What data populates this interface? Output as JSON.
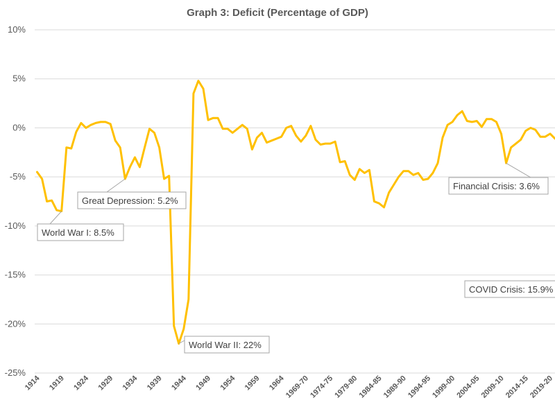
{
  "chart_data": {
    "type": "line",
    "title": "Graph 3: Deficit (Percentage of GDP)",
    "xlabel": "",
    "ylabel": "",
    "ylim": [
      -25,
      10
    ],
    "yticks": [
      10,
      5,
      0,
      -5,
      -10,
      -15,
      -20,
      -25
    ],
    "ytick_labels": [
      "10%",
      "5%",
      "0%",
      "-5%",
      "-10%",
      "-15%",
      "-20%",
      "-25%"
    ],
    "xtick_labels": [
      "1914",
      "1919",
      "1924",
      "1929",
      "1934",
      "1939",
      "1944",
      "1949",
      "1954",
      "1959",
      "1964",
      "1969-70",
      "1974-75",
      "1979-80",
      "1984-85",
      "1989-90",
      "1994-95",
      "1999-00",
      "2004-05",
      "2009-10",
      "2014-15",
      "2019-20"
    ],
    "grid": true,
    "legend": "none",
    "line_color": "#FFC000",
    "series": [
      {
        "values": [
          -4.5,
          -5.2,
          -7.5,
          -7.4,
          -8.4,
          -8.5,
          -2.0,
          -2.1,
          -0.4,
          0.5,
          0.0,
          0.3,
          0.5,
          0.6,
          0.6,
          0.4,
          -1.3,
          -2.0,
          -5.2,
          -4.0,
          -3.0,
          -4.0,
          -2.0,
          -0.1,
          -0.5,
          -2.0,
          -5.2,
          -4.9,
          -20.2,
          -22.0,
          -20.5,
          -17.5,
          3.5,
          4.8,
          4.0,
          0.8,
          1.0,
          1.0,
          -0.1,
          -0.1,
          -0.5,
          -0.1,
          0.3,
          -0.1,
          -2.2,
          -1.0,
          -0.5,
          -1.5,
          -1.3,
          -1.1,
          -0.9,
          0.0,
          0.2,
          -0.8,
          -1.4,
          -0.8,
          0.2,
          -1.2,
          -1.7,
          -1.6,
          -1.6,
          -1.4,
          -3.5,
          -3.4,
          -4.8,
          -5.3,
          -4.2,
          -4.6,
          -4.3,
          -7.5,
          -7.7,
          -8.1,
          -6.6,
          -5.8,
          -5.0,
          -4.4,
          -4.4,
          -4.8,
          -4.6,
          -5.3,
          -5.2,
          -4.6,
          -3.6,
          -1.0,
          0.3,
          0.6,
          1.3,
          1.7,
          0.7,
          0.6,
          0.7,
          0.1,
          0.9,
          0.9,
          0.6,
          -0.6,
          -3.6,
          -2.0,
          -1.6,
          -1.2,
          -0.3,
          0.0,
          -0.2,
          -0.9,
          -0.9,
          -0.6,
          -1.1
        ]
      }
    ],
    "annotations": [
      {
        "text": "World War I: 8.5%",
        "index": 5,
        "value": -8.5
      },
      {
        "text": "Great Depression: 5.2%",
        "index": 18,
        "value": -5.2
      },
      {
        "text": "World War II: 22%",
        "index": 29,
        "value": -22.0
      },
      {
        "text": "Financial Crisis: 3.6%",
        "index": 96,
        "value": -3.6
      },
      {
        "text": "COVID Crisis: 15.9%",
        "index": 107,
        "value": -15.9
      }
    ]
  }
}
